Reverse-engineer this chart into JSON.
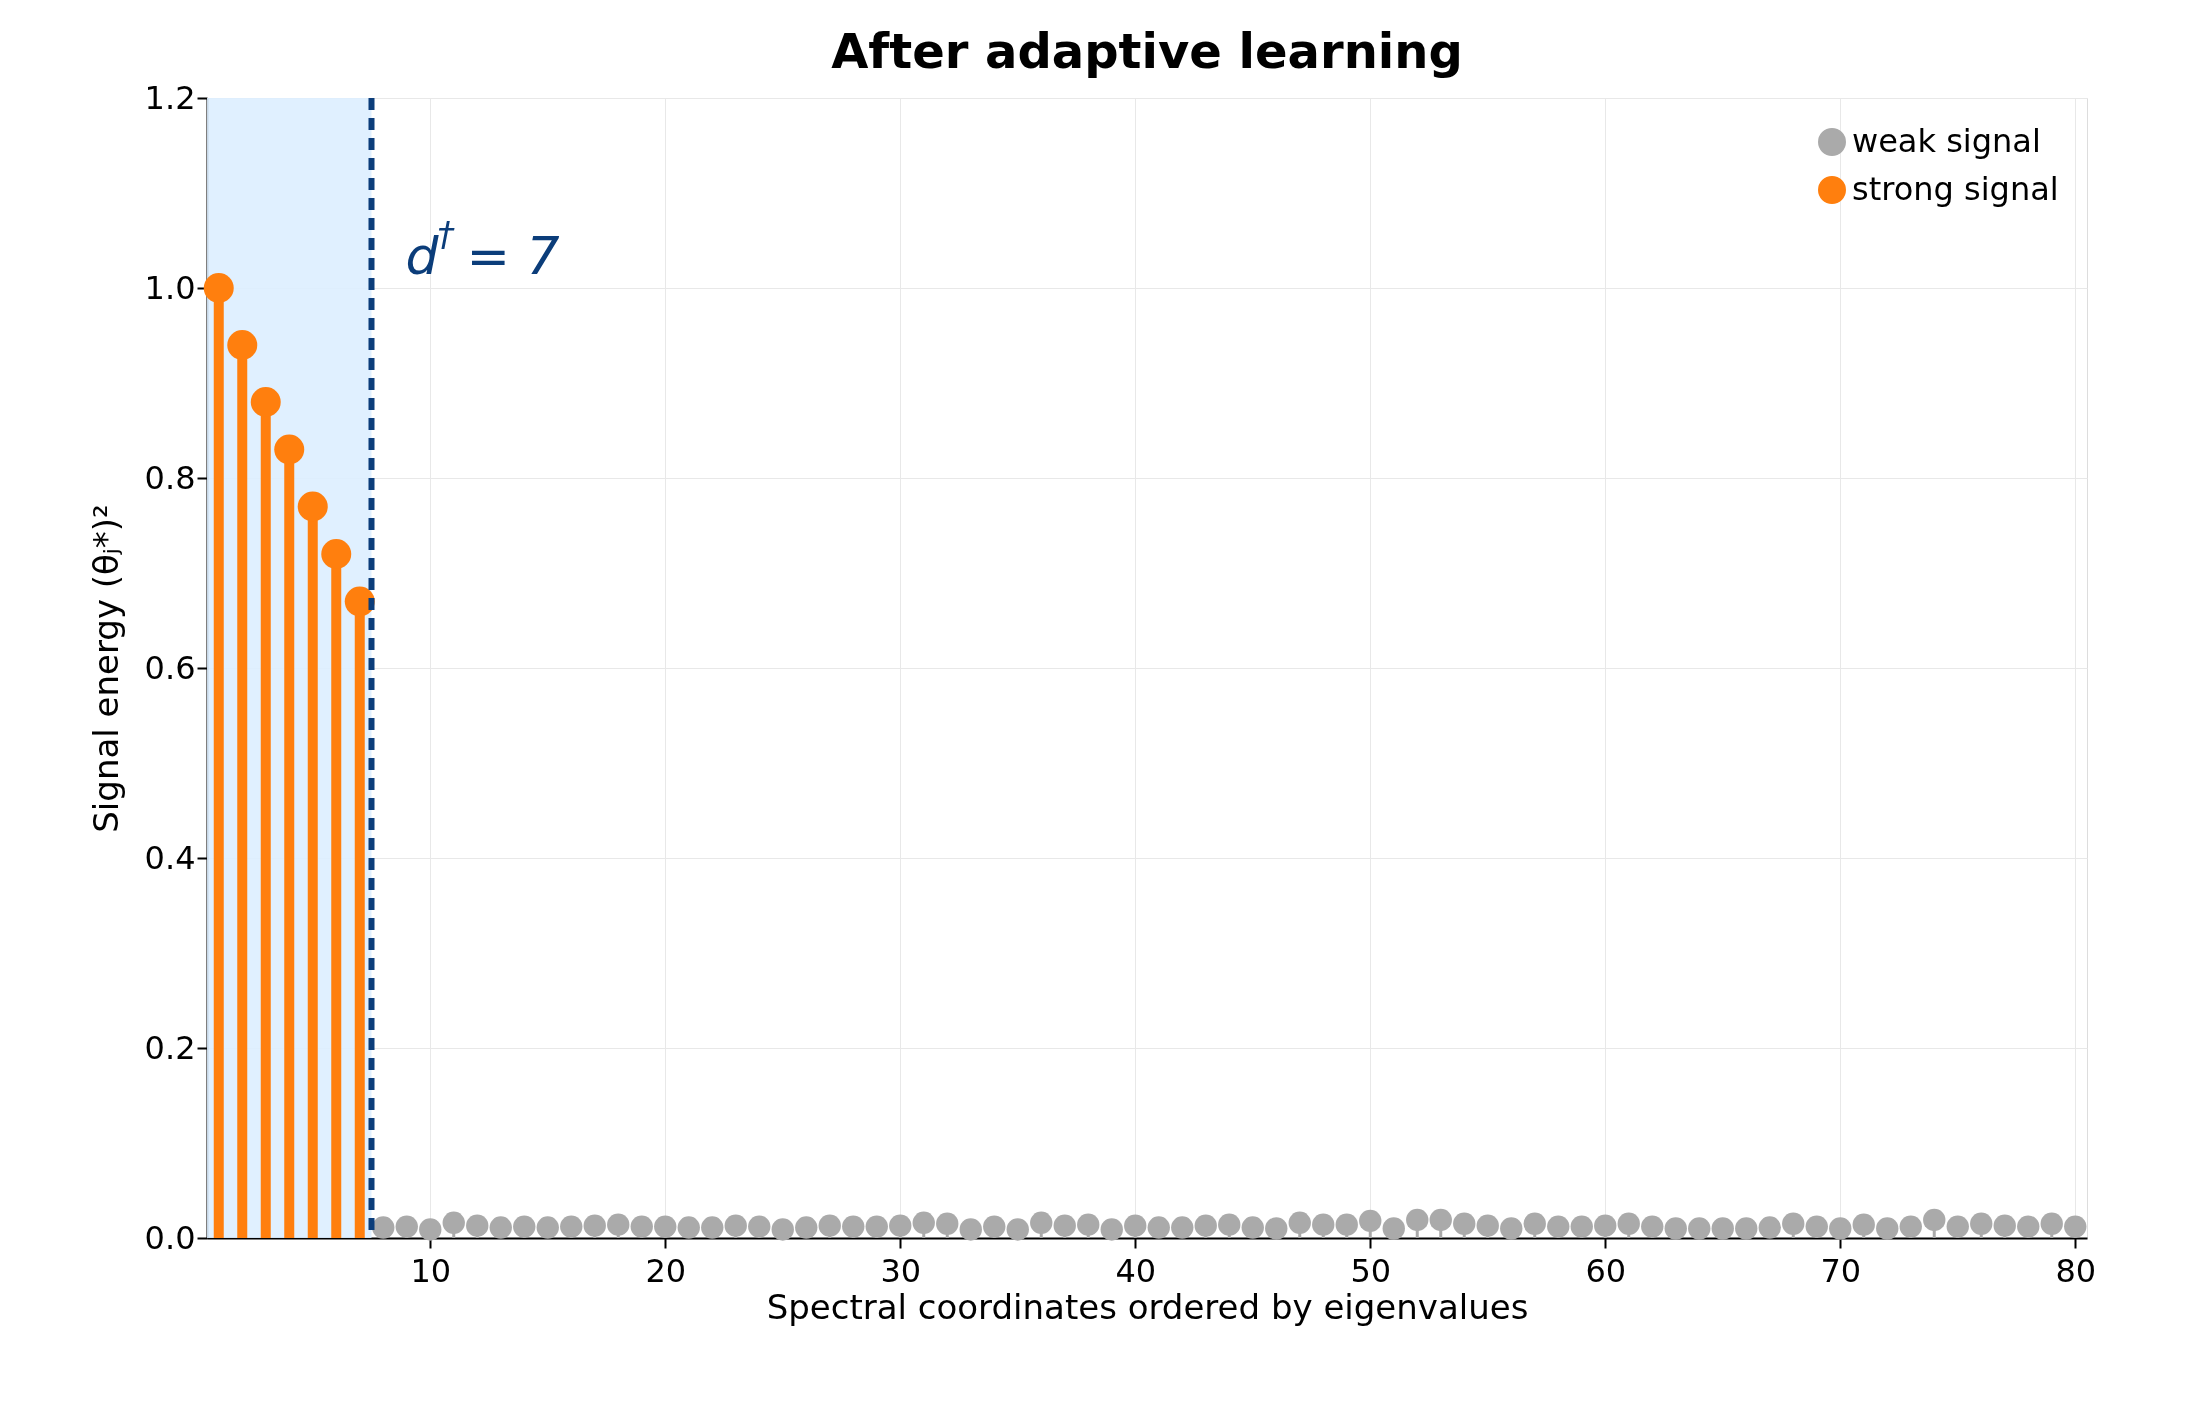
{
  "chart_data": {
    "type": "lollipop",
    "title": "After adaptive learning",
    "xlabel": "Spectral coordinates ordered by eigenvalues",
    "ylabel": "Signal energy (θⱼ*)²",
    "series": [
      {
        "name": "weak signal",
        "color": "#aaaaaa",
        "x": [
          8,
          9,
          10,
          11,
          12,
          13,
          14,
          15,
          16,
          17,
          18,
          19,
          20,
          21,
          22,
          23,
          24,
          25,
          26,
          27,
          28,
          29,
          30,
          31,
          32,
          33,
          34,
          35,
          36,
          37,
          38,
          39,
          40,
          41,
          42,
          43,
          44,
          45,
          46,
          47,
          48,
          49,
          50,
          51,
          52,
          53,
          54,
          55,
          56,
          57,
          58,
          59,
          60,
          61,
          62,
          63,
          64,
          65,
          66,
          67,
          68,
          69,
          70,
          71,
          72,
          73,
          74,
          75,
          76,
          77,
          78,
          79,
          80
        ],
        "values": [
          0.011,
          0.012,
          0.009,
          0.016,
          0.013,
          0.011,
          0.012,
          0.011,
          0.012,
          0.013,
          0.014,
          0.012,
          0.012,
          0.011,
          0.011,
          0.013,
          0.012,
          0.009,
          0.011,
          0.013,
          0.012,
          0.012,
          0.013,
          0.016,
          0.015,
          0.009,
          0.012,
          0.009,
          0.016,
          0.013,
          0.014,
          0.009,
          0.013,
          0.011,
          0.011,
          0.013,
          0.014,
          0.011,
          0.01,
          0.016,
          0.014,
          0.014,
          0.018,
          0.01,
          0.019,
          0.019,
          0.015,
          0.013,
          0.01,
          0.015,
          0.012,
          0.012,
          0.013,
          0.015,
          0.012,
          0.01,
          0.01,
          0.01,
          0.01,
          0.011,
          0.015,
          0.012,
          0.01,
          0.014,
          0.01,
          0.012,
          0.019,
          0.012,
          0.015,
          0.013,
          0.012,
          0.015,
          0.012
        ]
      },
      {
        "name": "strong signal",
        "color": "#ff7f0e",
        "x": [
          1,
          2,
          3,
          4,
          5,
          6,
          7
        ],
        "values": [
          1.0,
          0.94,
          0.88,
          0.83,
          0.77,
          0.72,
          0.67
        ]
      }
    ],
    "xlim": [
      0.5,
      80.5
    ],
    "xticks": [
      10,
      20,
      30,
      40,
      50,
      60,
      70,
      80
    ],
    "ylim": [
      0,
      1.2
    ],
    "yticks": [
      {
        "value": 0,
        "label": "0.0"
      },
      {
        "value": 0.2,
        "label": "0.2"
      },
      {
        "value": 0.4,
        "label": "0.4"
      },
      {
        "value": 0.6,
        "label": "0.6"
      },
      {
        "value": 0.8,
        "label": "0.8"
      },
      {
        "value": 1.0,
        "label": "1.0"
      },
      {
        "value": 1.2,
        "label": "1.2"
      }
    ],
    "bands": [
      {
        "axis": "x",
        "from": 0.5,
        "to": 7.5,
        "color": "#ddeeff"
      }
    ],
    "ref_lines": [
      {
        "axis": "x",
        "value": 7.5,
        "label": "d$^{†}$ = 7",
        "color": "#0b3d7a",
        "line_style": "dashed"
      }
    ],
    "grid": true,
    "legend": "top right",
    "marker": "circle"
  }
}
